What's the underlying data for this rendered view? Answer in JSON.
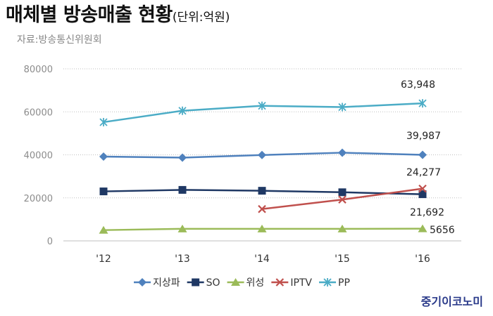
{
  "header": {
    "title": "매체별 방송매출 현황",
    "unit": "(단위:억원)",
    "source": "자료:방송통신위원회"
  },
  "brand": {
    "text": "중기이코노미"
  },
  "chart_data": {
    "type": "line",
    "title": "매체별 방송매출 현황",
    "x": [
      "'12",
      "'13",
      "'14",
      "'15",
      "'16"
    ],
    "ylim": [
      0,
      80000
    ],
    "yticks": [
      0,
      20000,
      40000,
      60000,
      80000
    ],
    "grid": true,
    "legend": "bottom",
    "series": [
      {
        "name": "지상파",
        "color": "#4f81bd",
        "marker": "diamond",
        "values": [
          39200,
          38700,
          39900,
          41000,
          39987
        ]
      },
      {
        "name": "SO",
        "color": "#1f3864",
        "marker": "square",
        "values": [
          23000,
          23700,
          23300,
          22600,
          21692
        ]
      },
      {
        "name": "위성",
        "color": "#9bbb59",
        "marker": "triangle",
        "values": [
          5000,
          5600,
          5600,
          5600,
          5656
        ]
      },
      {
        "name": "IPTV",
        "color": "#c0504d",
        "marker": "x",
        "values": [
          null,
          null,
          14800,
          19200,
          24277
        ]
      },
      {
        "name": "PP",
        "color": "#4bacc6",
        "marker": "star",
        "values": [
          55200,
          60500,
          62800,
          62200,
          63948
        ]
      }
    ],
    "annotations": [
      {
        "series": "PP",
        "x": "'16",
        "text": "63,948"
      },
      {
        "series": "지상파",
        "x": "'16",
        "text": "39,987"
      },
      {
        "series": "IPTV",
        "x": "'16",
        "text": "24,277"
      },
      {
        "series": "SO",
        "x": "'16",
        "text": "21,692"
      },
      {
        "series": "위성",
        "x": "'16",
        "text": "5656"
      }
    ]
  }
}
